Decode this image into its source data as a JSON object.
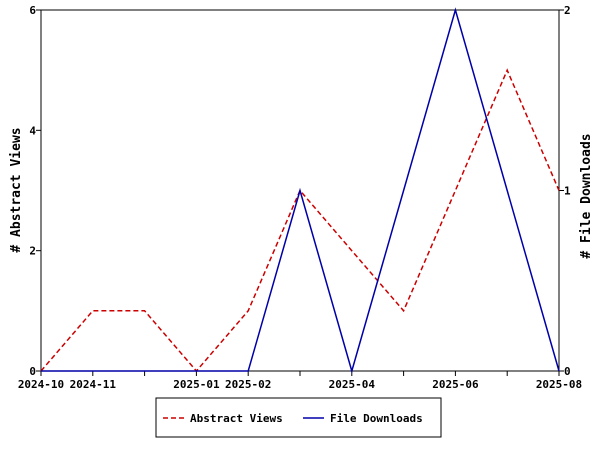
{
  "chart_data": {
    "type": "line",
    "x": [
      "2024-10",
      "2024-11",
      "2024-12",
      "2025-01",
      "2025-02",
      "2025-03",
      "2025-04",
      "2025-05",
      "2025-06",
      "2025-07",
      "2025-08"
    ],
    "x_tick_labels": [
      "2024-10",
      "2024-11",
      "2025-01",
      "2025-02",
      "2025-04",
      "2025-06",
      "2025-08"
    ],
    "series": [
      {
        "name": "Abstract Views",
        "axis": "left",
        "color": "#cc0000",
        "dash": "dashed",
        "values": [
          0,
          1,
          1,
          0,
          1,
          3,
          2,
          1,
          3,
          5,
          3
        ]
      },
      {
        "name": "File Downloads",
        "axis": "right",
        "color": "#0000aa",
        "dash": "solid",
        "values": [
          0,
          0,
          0,
          0,
          0,
          1,
          0,
          1,
          2,
          1,
          0
        ]
      }
    ],
    "ylabel": "# Abstract Views",
    "ylabel_right": "# File Downloads",
    "ylim": [
      0,
      6
    ],
    "ylim_right": [
      0,
      2
    ],
    "y_ticks": [
      "0",
      "2",
      "4",
      "6"
    ],
    "y_ticks_right": [
      "0",
      "1",
      "2"
    ],
    "legend_position": "bottom",
    "grid": false
  }
}
